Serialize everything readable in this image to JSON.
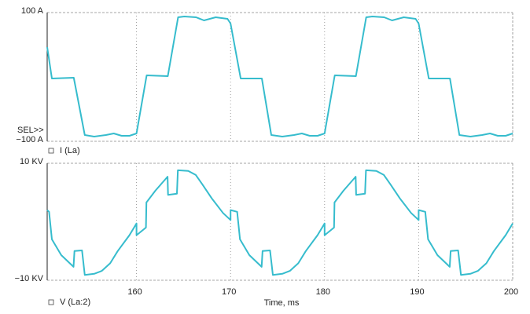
{
  "chart_data": [
    {
      "type": "line",
      "annotation": "SEL>>",
      "grid": true,
      "xlim": [
        150.5,
        200
      ],
      "ylim": [
        -100,
        100
      ],
      "yticks": [
        {
          "value": 100,
          "label": "100 A"
        },
        {
          "value": -100,
          "label": "−100 A"
        }
      ],
      "x": [
        150.5,
        151,
        153.33,
        154.5,
        155.5,
        156.75,
        157.58,
        158.42,
        159.25,
        160,
        161.08,
        163.33,
        164.42,
        165.08,
        166.33,
        167.17,
        168.42,
        169.67,
        170,
        171.08,
        173.33,
        174.33,
        175.5,
        176.75,
        177.58,
        178.42,
        179.25,
        180,
        181.08,
        183.33,
        184.42,
        185.08,
        186.33,
        187.17,
        188.42,
        189.67,
        190,
        191.08,
        193.33,
        194.33,
        195.5,
        196.75,
        197.58,
        198.42,
        199.25,
        200
      ],
      "series": [
        {
          "name": "I (La)",
          "color": "#36bccd",
          "values": [
            46.3,
            -2.4,
            -1.2,
            -90.2,
            -92.7,
            -90.2,
            -87.8,
            -91.5,
            -91.5,
            -87.8,
            2.4,
            1.2,
            92.7,
            93.9,
            92.7,
            87.8,
            92.7,
            90.2,
            82.9,
            -2.4,
            -2.4,
            -90.2,
            -92.7,
            -90.2,
            -87.8,
            -91.5,
            -91.5,
            -87.8,
            2.4,
            1.2,
            92.7,
            93.9,
            92.7,
            87.8,
            92.7,
            90.2,
            82.9,
            -2.4,
            -2.4,
            -90.2,
            -92.7,
            -90.2,
            -87.8,
            -91.5,
            -91.5,
            -87.8
          ]
        }
      ]
    },
    {
      "type": "line",
      "xlabel": "Time, ms",
      "grid": true,
      "xlim": [
        150.5,
        200
      ],
      "xticks": [
        160,
        170,
        180,
        190,
        200
      ],
      "ylim": [
        -10,
        10
      ],
      "yticks": [
        {
          "value": 10,
          "label": "10 KV"
        },
        {
          "value": -10,
          "label": "−10 KV"
        }
      ],
      "x": [
        150.5,
        150.7,
        151,
        152,
        153.3,
        153.4,
        154.2,
        154.5,
        155.5,
        156.3,
        157.2,
        158,
        159.25,
        160,
        160,
        161,
        161.05,
        162,
        163.3,
        163.35,
        164.3,
        164.4,
        165.5,
        166.3,
        167,
        168,
        169.2,
        170,
        170,
        170.7,
        171,
        172,
        173.3,
        173.4,
        174.2,
        174.5,
        175.5,
        176.3,
        177.2,
        178,
        179.25,
        180,
        180,
        181,
        181.05,
        182,
        183.3,
        183.35,
        184.3,
        184.4,
        185.5,
        186.3,
        187,
        188,
        189.2,
        190,
        190,
        190.7,
        191,
        192,
        193.3,
        193.4,
        194.2,
        194.5,
        195.5,
        196.3,
        197.2,
        198,
        199.25,
        200
      ],
      "series": [
        {
          "name": "V (La:2)",
          "color": "#36bccd",
          "values": [
            2.0,
            1.7,
            -3.0,
            -5.7,
            -7.7,
            -5.0,
            -4.9,
            -9.1,
            -8.9,
            -8.4,
            -7.1,
            -5.0,
            -2.3,
            -0.3,
            -2.3,
            -1.0,
            3.3,
            5.3,
            7.7,
            4.6,
            4.8,
            8.8,
            8.7,
            8.0,
            6.4,
            4.0,
            1.5,
            0.3,
            2.0,
            1.7,
            -3.0,
            -5.7,
            -7.7,
            -5.0,
            -4.9,
            -9.1,
            -8.9,
            -8.4,
            -7.1,
            -5.0,
            -2.3,
            -0.3,
            -2.3,
            -1.0,
            3.3,
            5.3,
            7.7,
            4.6,
            4.8,
            8.8,
            8.7,
            8.0,
            6.4,
            4.0,
            1.5,
            0.3,
            2.0,
            1.7,
            -3.0,
            -5.7,
            -7.7,
            -5.0,
            -4.9,
            -9.1,
            -8.9,
            -8.4,
            -7.1,
            -5.0,
            -2.3,
            -0.3
          ]
        }
      ]
    }
  ]
}
